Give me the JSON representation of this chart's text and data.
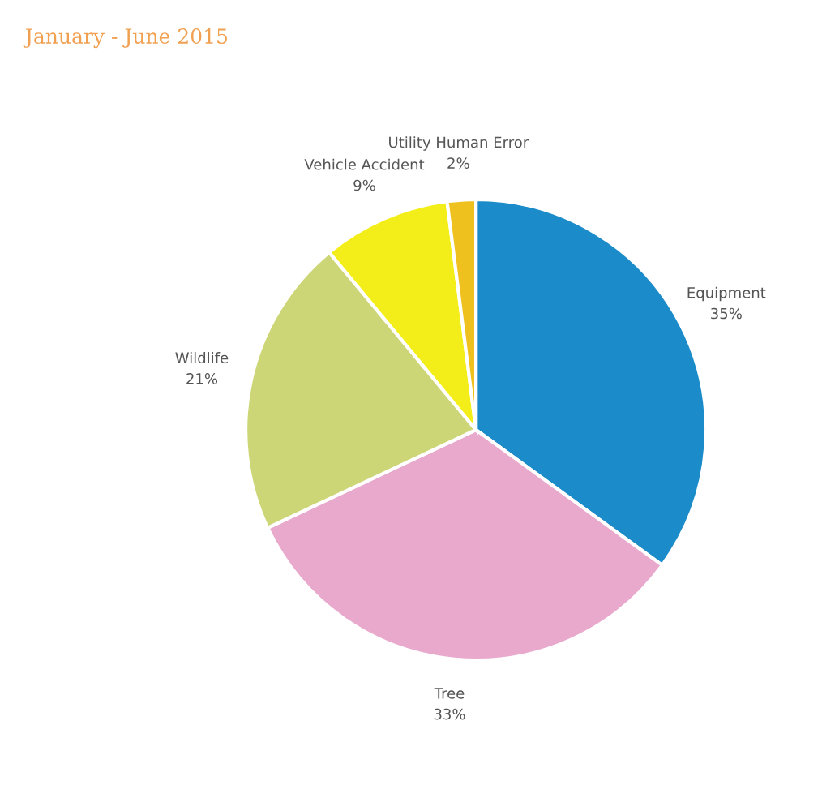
{
  "chart_data": {
    "type": "pie",
    "title": "January - June 2015",
    "categories": [
      "Equipment",
      "Tree",
      "Wildlife",
      "Vehicle Accident",
      "Utility Human Error"
    ],
    "values": [
      35,
      33,
      21,
      9,
      2
    ],
    "value_labels": [
      "35%",
      "33%",
      "21%",
      "9%",
      "2%"
    ],
    "colors": [
      "#1b8cc9",
      "#e9a9cd",
      "#cdd676",
      "#f3ee1a",
      "#efc11e"
    ],
    "legend": false
  }
}
